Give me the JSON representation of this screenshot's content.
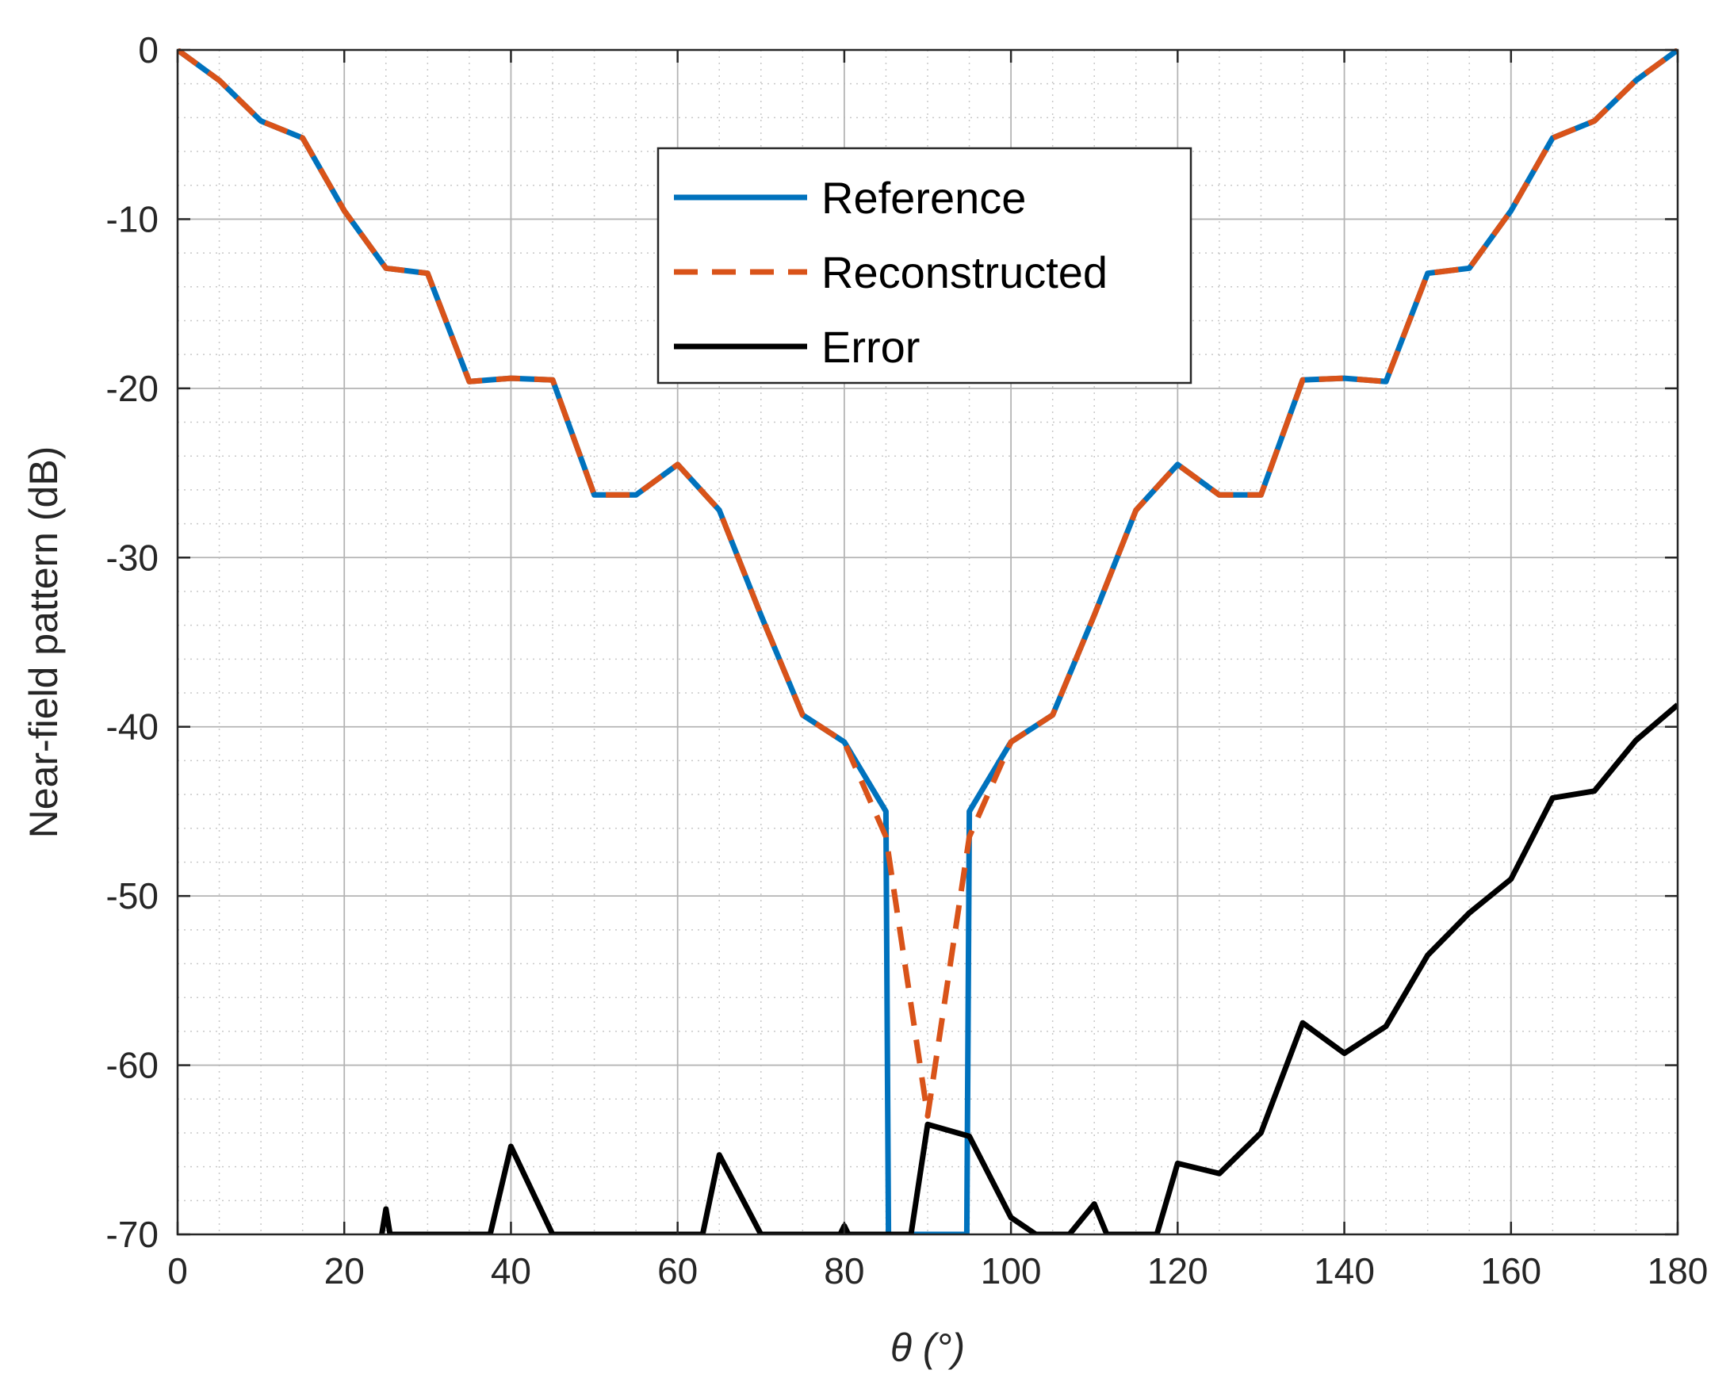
{
  "chart_data": {
    "type": "line",
    "title": "",
    "xlabel": "θ (°)",
    "ylabel": "Near-field pattern (dB)",
    "xlim": [
      0,
      180
    ],
    "ylim": [
      -70,
      0
    ],
    "xticks": [
      0,
      20,
      40,
      60,
      80,
      100,
      120,
      140,
      160,
      180
    ],
    "yticks": [
      0,
      -10,
      -20,
      -30,
      -40,
      -50,
      -60,
      -70
    ],
    "grid": true,
    "minor_grid": true,
    "legend_position": "top-center",
    "series": [
      {
        "name": "Reference",
        "color": "#0072bd",
        "style": "solid",
        "points": [
          [
            0,
            0
          ],
          [
            5,
            -1.8
          ],
          [
            10,
            -4.2
          ],
          [
            15,
            -5.2
          ],
          [
            20,
            -9.5
          ],
          [
            25,
            -12.9
          ],
          [
            30,
            -13.2
          ],
          [
            35,
            -19.6
          ],
          [
            40,
            -19.4
          ],
          [
            45,
            -19.5
          ],
          [
            50,
            -26.3
          ],
          [
            55,
            -26.3
          ],
          [
            60,
            -24.5
          ],
          [
            65,
            -27.2
          ],
          [
            70,
            -33.4
          ],
          [
            75,
            -39.3
          ],
          [
            80,
            -40.9
          ],
          [
            85,
            -45.0
          ],
          [
            85.3,
            -70
          ],
          [
            94.7,
            -70
          ],
          [
            95,
            -45.0
          ],
          [
            100,
            -40.9
          ],
          [
            105,
            -39.3
          ],
          [
            110,
            -33.4
          ],
          [
            115,
            -27.2
          ],
          [
            120,
            -24.5
          ],
          [
            125,
            -26.3
          ],
          [
            130,
            -26.3
          ],
          [
            135,
            -19.5
          ],
          [
            140,
            -19.4
          ],
          [
            145,
            -19.6
          ],
          [
            150,
            -13.2
          ],
          [
            155,
            -12.9
          ],
          [
            160,
            -9.5
          ],
          [
            165,
            -5.2
          ],
          [
            170,
            -4.2
          ],
          [
            175,
            -1.8
          ],
          [
            180,
            0
          ]
        ]
      },
      {
        "name": "Reconstructed",
        "color": "#d95319",
        "style": "dashed",
        "points": [
          [
            0,
            0
          ],
          [
            5,
            -1.8
          ],
          [
            10,
            -4.2
          ],
          [
            15,
            -5.2
          ],
          [
            20,
            -9.5
          ],
          [
            25,
            -12.9
          ],
          [
            30,
            -13.2
          ],
          [
            35,
            -19.6
          ],
          [
            40,
            -19.4
          ],
          [
            45,
            -19.5
          ],
          [
            50,
            -26.3
          ],
          [
            55,
            -26.3
          ],
          [
            60,
            -24.5
          ],
          [
            65,
            -27.2
          ],
          [
            70,
            -33.4
          ],
          [
            75,
            -39.3
          ],
          [
            80,
            -40.9
          ],
          [
            85,
            -46.5
          ],
          [
            90,
            -63.0
          ],
          [
            95,
            -46.5
          ],
          [
            100,
            -40.9
          ],
          [
            105,
            -39.3
          ],
          [
            110,
            -33.4
          ],
          [
            115,
            -27.2
          ],
          [
            120,
            -24.5
          ],
          [
            125,
            -26.3
          ],
          [
            130,
            -26.3
          ],
          [
            135,
            -19.5
          ],
          [
            140,
            -19.4
          ],
          [
            145,
            -19.6
          ],
          [
            150,
            -13.2
          ],
          [
            155,
            -12.9
          ],
          [
            160,
            -9.5
          ],
          [
            165,
            -5.2
          ],
          [
            170,
            -4.2
          ],
          [
            175,
            -1.8
          ],
          [
            180,
            0
          ]
        ]
      },
      {
        "name": "Error",
        "color": "#000000",
        "style": "solid",
        "points": [
          [
            24.5,
            -70
          ],
          [
            25,
            -68.5
          ],
          [
            25.5,
            -70
          ],
          [
            37.5,
            -70
          ],
          [
            40,
            -64.8
          ],
          [
            45,
            -70
          ],
          [
            63,
            -70
          ],
          [
            65,
            -65.3
          ],
          [
            70,
            -70
          ],
          [
            79.5,
            -70
          ],
          [
            80,
            -69.5
          ],
          [
            80.5,
            -70
          ],
          [
            88,
            -70
          ],
          [
            90,
            -63.5
          ],
          [
            95,
            -64.2
          ],
          [
            100,
            -69.0
          ],
          [
            103,
            -70
          ],
          [
            107,
            -70
          ],
          [
            110,
            -68.2
          ],
          [
            111.5,
            -70
          ],
          [
            117.5,
            -70
          ],
          [
            120,
            -65.8
          ],
          [
            125,
            -66.4
          ],
          [
            130,
            -64.0
          ],
          [
            135,
            -57.5
          ],
          [
            140,
            -59.3
          ],
          [
            145,
            -57.7
          ],
          [
            150,
            -53.5
          ],
          [
            155,
            -51.0
          ],
          [
            160,
            -49.0
          ],
          [
            165,
            -44.2
          ],
          [
            170,
            -43.8
          ],
          [
            175,
            -40.8
          ],
          [
            180,
            -38.7
          ]
        ]
      }
    ]
  }
}
